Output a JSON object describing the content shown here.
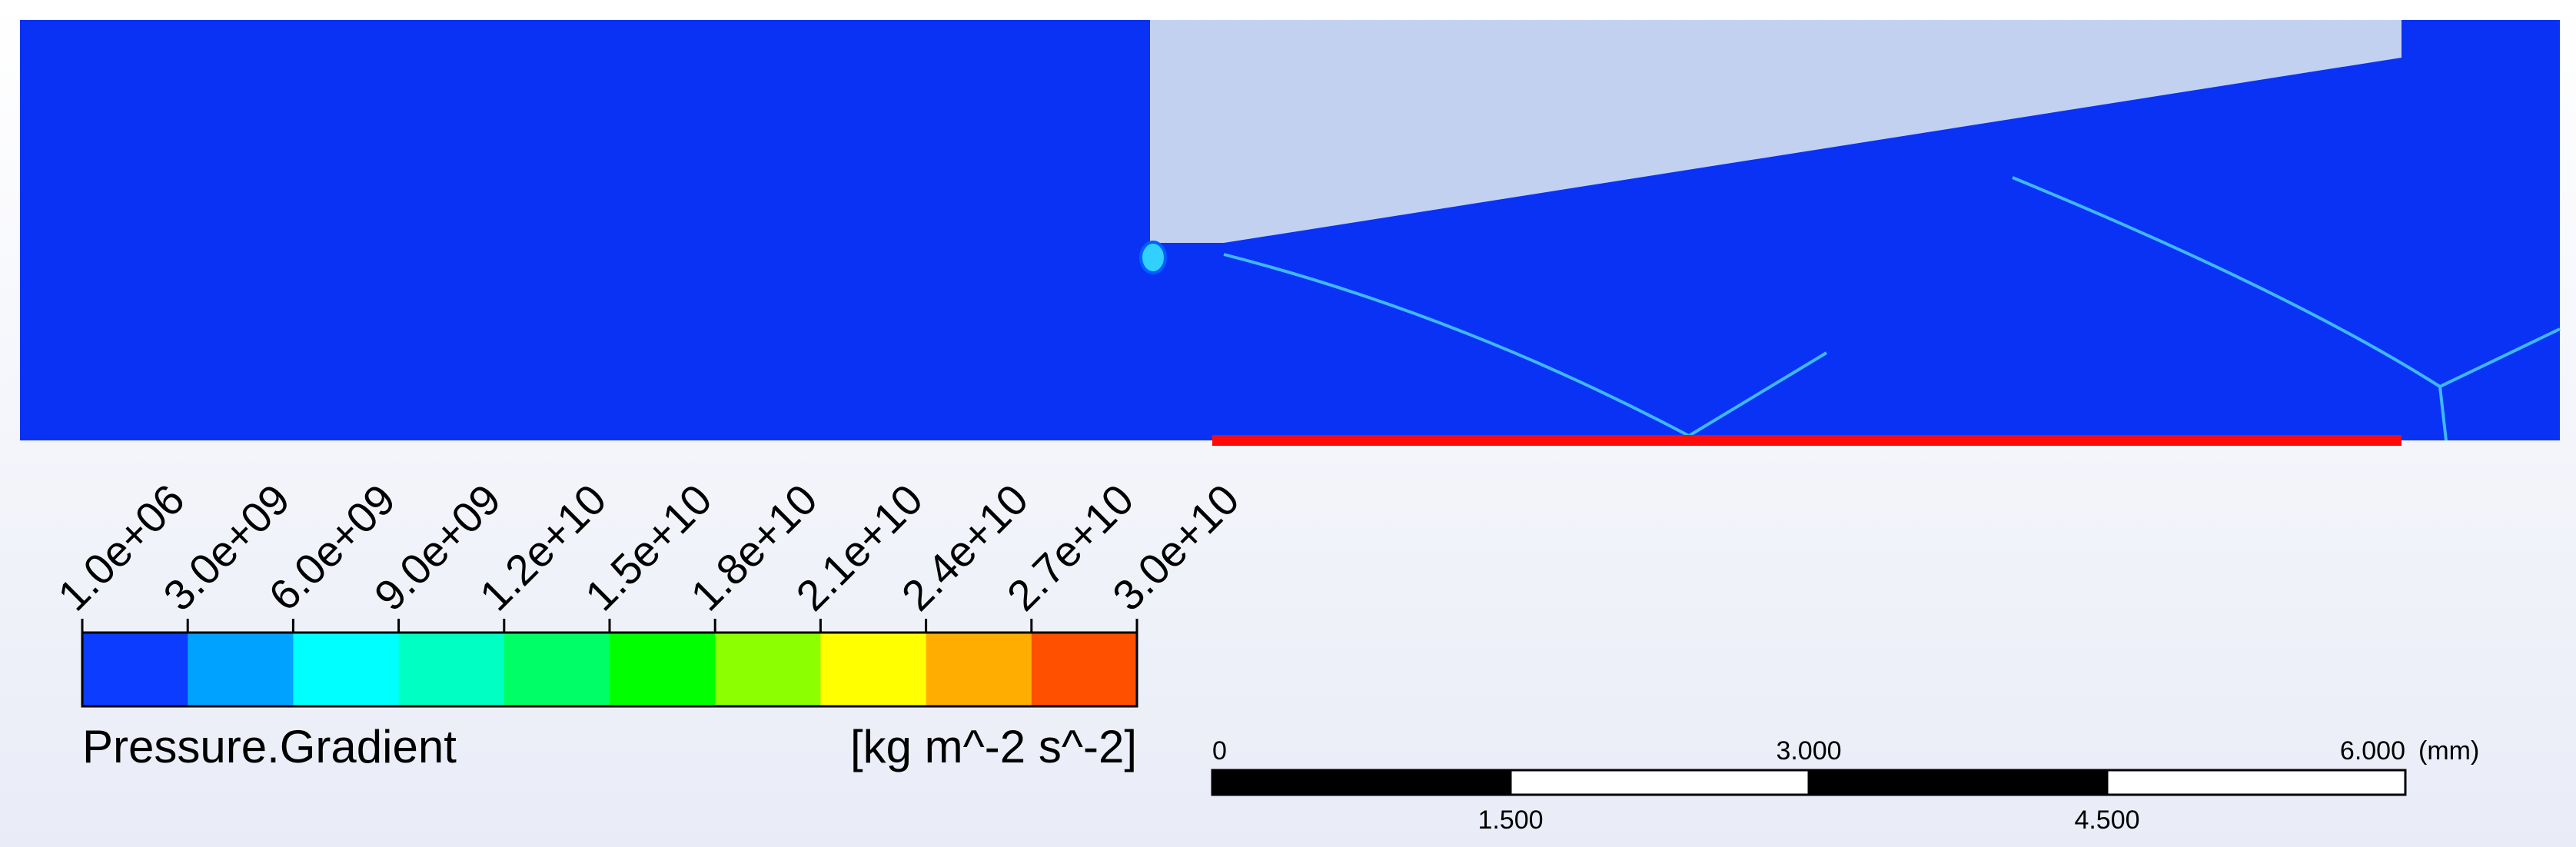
{
  "legend": {
    "title": "Pressure.Gradient",
    "units": "[kg m^-2 s^-2]",
    "ticks": [
      "1.0e+06",
      "3.0e+09",
      "6.0e+09",
      "9.0e+09",
      "1.2e+10",
      "1.5e+10",
      "1.8e+10",
      "2.1e+10",
      "2.4e+10",
      "2.7e+10",
      "3.0e+10"
    ],
    "colors": [
      "#0b3cff",
      "#00a2ff",
      "#00ffff",
      "#00ffc3",
      "#00ff66",
      "#00ff00",
      "#8cff00",
      "#ffff00",
      "#ffae00",
      "#ff5000"
    ]
  },
  "scale_bar": {
    "top_labels": [
      "0",
      "3.000",
      "6.000"
    ],
    "bottom_labels": [
      "1.500",
      "4.500"
    ],
    "unit": "(mm)"
  }
}
